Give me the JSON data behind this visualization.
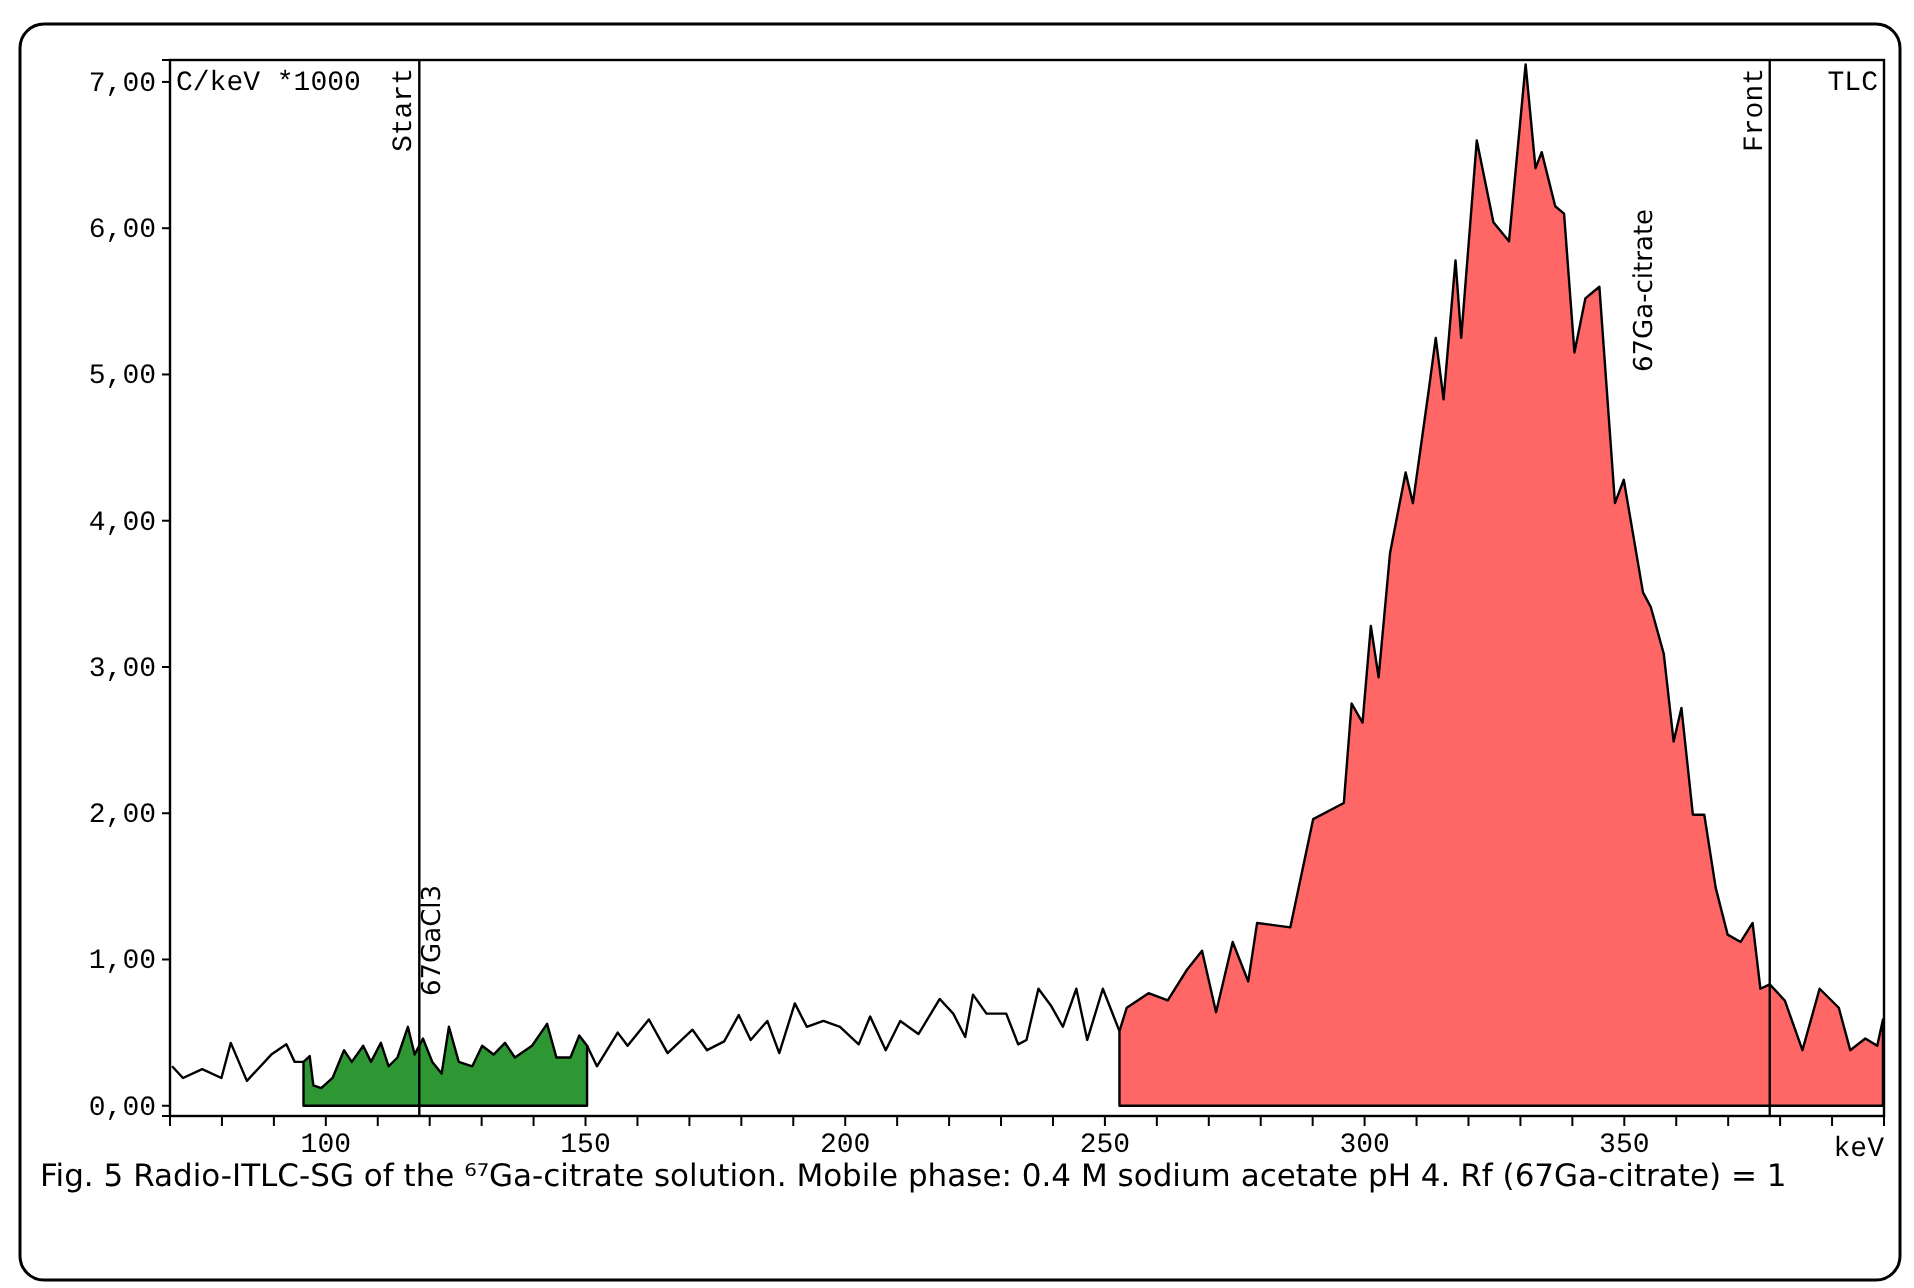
{
  "chart_data": {
    "type": "line",
    "ylabel": "C/keV *1000",
    "xlabel": "keV",
    "xlim": [
      70,
      400
    ],
    "ylim": [
      -0.07,
      7.15
    ],
    "xticks": [
      {
        "value": 80,
        "label": null
      },
      {
        "value": 90,
        "label": null
      },
      100,
      {
        "value": 110,
        "label": null
      },
      {
        "value": 120,
        "label": null
      },
      {
        "value": 130,
        "label": null
      },
      {
        "value": 140,
        "label": null
      },
      150,
      {
        "value": 160,
        "label": null
      },
      {
        "value": 170,
        "label": null
      },
      {
        "value": 180,
        "label": null
      },
      {
        "value": 190,
        "label": null
      },
      200,
      {
        "value": 210,
        "label": null
      },
      {
        "value": 220,
        "label": null
      },
      {
        "value": 230,
        "label": null
      },
      {
        "value": 240,
        "label": null
      },
      250,
      {
        "value": 260,
        "label": null
      },
      {
        "value": 270,
        "label": null
      },
      {
        "value": 280,
        "label": null
      },
      {
        "value": 290,
        "label": null
      },
      300,
      {
        "value": 310,
        "label": null
      },
      {
        "value": 320,
        "label": null
      },
      {
        "value": 330,
        "label": null
      },
      {
        "value": 340,
        "label": null
      },
      350,
      {
        "value": 360,
        "label": null
      },
      {
        "value": 370,
        "label": null
      },
      {
        "value": 380,
        "label": null
      },
      {
        "value": 390,
        "label": null
      }
    ],
    "yticks": [
      {
        "value": 0,
        "label": "0,00"
      },
      {
        "value": 1,
        "label": "1,00"
      },
      {
        "value": 2,
        "label": "2,00"
      },
      {
        "value": 3,
        "label": "3,00"
      },
      {
        "value": 4,
        "label": "4,00"
      },
      {
        "value": 5,
        "label": "5,00"
      },
      {
        "value": 6,
        "label": "6,00"
      },
      {
        "value": 7,
        "label": "7,00"
      }
    ],
    "grid": false,
    "series": [
      {
        "color": "#000000",
        "x": [
          70.4,
          72.5,
          76.2,
          79.9,
          81.7,
          84.8,
          89.5,
          92.4,
          94,
          95.7
        ],
        "values": [
          0.27,
          0.19,
          0.25,
          0.19,
          0.43,
          0.17,
          0.35,
          0.42,
          0.3,
          0.3
        ]
      },
      {
        "type": "area",
        "color": "#2e9632",
        "x": [
          95.7,
          96.9,
          97.6,
          99.1,
          101.3,
          103.5,
          105,
          107.2,
          108.7,
          110.6,
          112.1,
          113.8,
          115.8,
          117.1,
          118.7,
          120.5,
          122.3,
          123.7,
          125.6,
          128.2,
          130.1,
          132.3,
          134.5,
          136.4,
          139.7,
          142.6,
          144.4,
          147.1,
          148.8,
          150.3
        ],
        "values": [
          0.3,
          0.34,
          0.14,
          0.12,
          0.19,
          0.38,
          0.3,
          0.41,
          0.3,
          0.43,
          0.27,
          0.33,
          0.54,
          0.35,
          0.46,
          0.3,
          0.22,
          0.54,
          0.3,
          0.27,
          0.41,
          0.35,
          0.43,
          0.33,
          0.41,
          0.56,
          0.33,
          0.33,
          0.48,
          0.41
        ]
      },
      {
        "color": "#000000",
        "x": [
          150.3,
          152.2,
          156.2,
          158.1,
          162.2,
          165.8,
          170.6,
          173.4,
          176.7,
          179.5,
          181.8,
          185,
          187.3,
          190.3,
          192.6,
          195.8,
          199,
          202.6,
          204.8,
          207.8,
          210.6,
          214.1,
          218.2,
          220.8,
          223.1,
          224.6,
          227.2,
          231,
          233.3,
          234.9,
          237.2,
          239.7,
          241.9,
          244.5,
          246.6,
          249.6,
          252.8
        ],
        "values": [
          0.41,
          0.27,
          0.5,
          0.41,
          0.59,
          0.36,
          0.52,
          0.38,
          0.44,
          0.62,
          0.45,
          0.58,
          0.36,
          0.7,
          0.54,
          0.58,
          0.54,
          0.42,
          0.61,
          0.38,
          0.58,
          0.49,
          0.73,
          0.63,
          0.47,
          0.76,
          0.63,
          0.63,
          0.42,
          0.45,
          0.8,
          0.68,
          0.54,
          0.8,
          0.45,
          0.8,
          0.51
        ]
      },
      {
        "type": "area",
        "color": "#ff6666",
        "x": [
          252.8,
          254.2,
          258.4,
          262.1,
          265.8,
          268.7,
          271.4,
          274.6,
          277.6,
          279.3,
          285.7,
          290.1,
          296,
          297.5,
          299.6,
          301.2,
          302.7,
          304.9,
          307.9,
          309.3,
          312.3,
          313.7,
          315.2,
          317.5,
          318.6,
          321.6,
          324.8,
          327.8,
          331,
          332.9,
          334.1,
          336.7,
          338.4,
          340.4,
          342.5,
          345.2,
          348.2,
          349.9,
          353.6,
          355.1,
          357.6,
          359.5,
          361,
          363.2,
          365.4,
          367.6,
          369.9,
          372.4,
          374.7,
          376.2,
          378,
          380.9,
          384.3,
          387.6,
          391.3,
          393.5,
          396.4,
          398.7,
          399.8
        ],
        "values": [
          0.51,
          0.67,
          0.77,
          0.72,
          0.93,
          1.06,
          0.64,
          1.12,
          0.85,
          1.25,
          1.22,
          1.96,
          2.07,
          2.75,
          2.62,
          3.28,
          2.93,
          3.78,
          4.33,
          4.12,
          4.88,
          5.25,
          4.83,
          5.78,
          5.25,
          6.6,
          6.04,
          5.91,
          7.12,
          6.41,
          6.52,
          6.15,
          6.1,
          5.15,
          5.52,
          5.6,
          4.12,
          4.28,
          3.51,
          3.41,
          3.09,
          2.49,
          2.72,
          1.99,
          1.99,
          1.49,
          1.17,
          1.12,
          1.25,
          0.8,
          0.83,
          0.72,
          0.38,
          0.8,
          0.67,
          0.38,
          0.46,
          0.41,
          0.59
        ]
      }
    ],
    "ref_lines": [
      {
        "axis": "x",
        "value": 118,
        "label": "Start",
        "color": "#000000"
      },
      {
        "axis": "x",
        "value": 378,
        "label": "Front",
        "color": "#000000"
      }
    ],
    "annotations": [
      "67GaCl3",
      "67Ga-citrate",
      "TLC",
      "Fig. 5 Radio-ITLC-SG of the ⁶⁷Ga-citrate solution. Mobile phase: 0.4 M sodium acetate pH 4. Rf (67Ga-citrate) = 1"
    ]
  }
}
